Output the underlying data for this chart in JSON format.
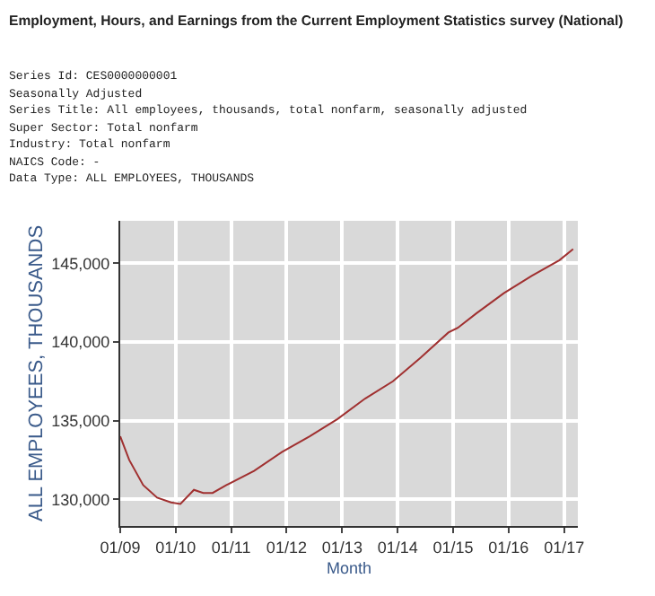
{
  "chart_data": {
    "type": "line",
    "title": "Employment, Hours, and Earnings from the Current Employment Statistics survey (National)",
    "annotations": [
      "Series Id: CES0000000001",
      "Seasonally Adjusted",
      "Series Title: All employees, thousands, total nonfarm, seasonally adjusted",
      "Super Sector: Total nonfarm",
      "Industry: Total nonfarm",
      "NAICS Code: -",
      "Data Type: ALL EMPLOYEES, THOUSANDS"
    ],
    "xlabel": "Month",
    "ylabel": "ALL EMPLOYEES, THOUSANDS",
    "x": [
      "2009-01",
      "2009-03",
      "2009-06",
      "2009-09",
      "2009-12",
      "2010-02",
      "2010-05",
      "2010-07",
      "2010-09",
      "2010-12",
      "2011-06",
      "2011-12",
      "2012-06",
      "2012-12",
      "2013-06",
      "2013-12",
      "2014-06",
      "2014-12",
      "2015-02",
      "2015-06",
      "2015-12",
      "2016-06",
      "2016-12",
      "2017-03"
    ],
    "series": [
      {
        "color": "#a03030",
        "values": [
          134000,
          132500,
          130900,
          130100,
          129800,
          129700,
          130600,
          130400,
          130400,
          130900,
          131800,
          133000,
          134000,
          135100,
          136400,
          137500,
          139000,
          140600,
          140900,
          141800,
          143100,
          144200,
          145200,
          145900
        ]
      }
    ],
    "xlim": [
      "2009-01",
      "2017-04"
    ],
    "xticks": [
      {
        "value": "2009-01",
        "label": "01/09"
      },
      {
        "value": "2010-01",
        "label": "01/10"
      },
      {
        "value": "2011-01",
        "label": "01/11"
      },
      {
        "value": "2012-01",
        "label": "01/12"
      },
      {
        "value": "2013-01",
        "label": "01/13"
      },
      {
        "value": "2014-01",
        "label": "01/14"
      },
      {
        "value": "2015-01",
        "label": "01/15"
      },
      {
        "value": "2016-01",
        "label": "01/16"
      },
      {
        "value": "2017-01",
        "label": "01/17"
      }
    ],
    "ylim": [
      128300,
      147700
    ],
    "yticks": [
      {
        "value": 130000,
        "label": "130,000"
      },
      {
        "value": 135000,
        "label": "135,000"
      },
      {
        "value": 140000,
        "label": "140,000"
      },
      {
        "value": 145000,
        "label": "145,000"
      }
    ],
    "grid": true,
    "legend": false,
    "marker": "none",
    "line_style": "solid"
  }
}
